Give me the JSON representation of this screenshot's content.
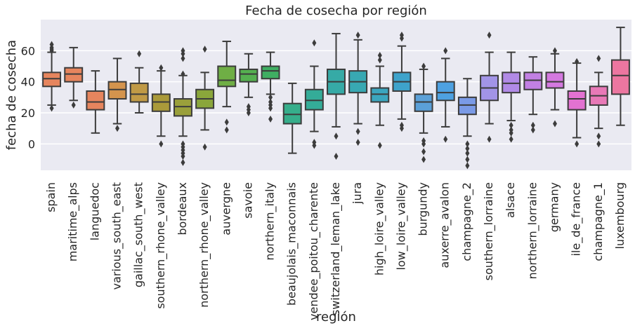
{
  "chart_data": {
    "type": "boxplot",
    "title": "Fecha de cosecha por región",
    "xlabel": "región",
    "ylabel": "fecha de cosecha",
    "ylim": [
      -17,
      80
    ],
    "yticks": [
      0,
      20,
      40,
      60
    ],
    "grid": true,
    "categories": [
      "spain",
      "maritime_alps",
      "languedoc",
      "various_south_east",
      "gaillac_south_west",
      "southern_rhone_valley",
      "bordeaux",
      "northern_rhone_valley",
      "auvergne",
      "savoie",
      "northern_italy",
      "beaujolais_maconnais",
      "vendee_poitou_charente",
      "switzerland_leman_lake",
      "jura",
      "high_loire_valley",
      "low_loire_valley",
      "burgundy",
      "auxerre_avalon",
      "champagne_2",
      "southern_lorraine",
      "alsace",
      "northern_lorraine",
      "germany",
      "ile_de_france",
      "champagne_1",
      "luxembourg"
    ],
    "colors": [
      "#e6855e",
      "#e6855e",
      "#e6855e",
      "#d4944d",
      "#c09a46",
      "#aa9a3a",
      "#9aa03b",
      "#8aa63b",
      "#6fae45",
      "#55b050",
      "#3fae62",
      "#36ae8b",
      "#34ac98",
      "#36aaa6",
      "#38a8b2",
      "#3ba6bf",
      "#3ea3cb",
      "#5ba0d8",
      "#4ea1e1",
      "#7a9ae6",
      "#a294e7",
      "#b18ae6",
      "#c280e4",
      "#d479e0",
      "#e272d1",
      "#e879b7",
      "#ec76a0"
    ],
    "series": [
      {
        "name": "spain",
        "min": 25,
        "q1": 37,
        "median": 42,
        "q3": 46,
        "max": 59,
        "outliers": [
          23,
          60,
          61,
          62,
          64
        ]
      },
      {
        "name": "maritime_alps",
        "min": 28,
        "q1": 40,
        "median": 45,
        "q3": 49,
        "max": 62,
        "outliers": [
          25
        ]
      },
      {
        "name": "languedoc",
        "min": 7,
        "q1": 22,
        "median": 27,
        "q3": 34,
        "max": 47,
        "outliers": []
      },
      {
        "name": "various_south_east",
        "min": 13,
        "q1": 29,
        "median": 35,
        "q3": 40,
        "max": 55,
        "outliers": [
          10
        ]
      },
      {
        "name": "gaillac_south_west",
        "min": 20,
        "q1": 27,
        "median": 32,
        "q3": 39,
        "max": 49,
        "outliers": [
          58
        ]
      },
      {
        "name": "southern_rhone_valley",
        "min": 5,
        "q1": 21,
        "median": 27,
        "q3": 32,
        "max": 47,
        "outliers": [
          0,
          49
        ]
      },
      {
        "name": "bordeaux",
        "min": 5,
        "q1": 18,
        "median": 24,
        "q3": 29,
        "max": 44,
        "outliers": [
          -12,
          -8,
          -6,
          -4,
          -2,
          0,
          45,
          55,
          58,
          60
        ]
      },
      {
        "name": "northern_rhone_valley",
        "min": 9,
        "q1": 23,
        "median": 29,
        "q3": 35,
        "max": 46,
        "outliers": [
          -2,
          61
        ]
      },
      {
        "name": "auvergne",
        "min": 24,
        "q1": 37,
        "median": 41,
        "q3": 50,
        "max": 66,
        "outliers": [
          9,
          14
        ]
      },
      {
        "name": "savoie",
        "min": 30,
        "q1": 40,
        "median": 45,
        "q3": 48,
        "max": 58,
        "outliers": [
          20,
          22,
          24
        ]
      },
      {
        "name": "northern_italy",
        "min": 32,
        "q1": 42,
        "median": 47,
        "q3": 50,
        "max": 59,
        "outliers": [
          16,
          23,
          25,
          27,
          30
        ]
      },
      {
        "name": "beaujolais_maconnais",
        "min": -6,
        "q1": 13,
        "median": 19,
        "q3": 26,
        "max": 39,
        "outliers": []
      },
      {
        "name": "vendee_poitou_charente",
        "min": 8,
        "q1": 22,
        "median": 28,
        "q3": 35,
        "max": 50,
        "outliers": [
          -1,
          1,
          65
        ]
      },
      {
        "name": "switzerland_leman_lake",
        "min": 11,
        "q1": 32,
        "median": 40,
        "q3": 48,
        "max": 71,
        "outliers": [
          -8,
          5
        ]
      },
      {
        "name": "jura",
        "min": 13,
        "q1": 33,
        "median": 40,
        "q3": 47,
        "max": 67,
        "outliers": [
          1,
          8,
          70
        ]
      },
      {
        "name": "high_loire_valley",
        "min": 12,
        "q1": 27,
        "median": 32,
        "q3": 36,
        "max": 50,
        "outliers": [
          -1,
          54,
          57
        ]
      },
      {
        "name": "low_loire_valley",
        "min": 16,
        "q1": 34,
        "median": 40,
        "q3": 46,
        "max": 63,
        "outliers": [
          10,
          12,
          68,
          70
        ]
      },
      {
        "name": "burgundy",
        "min": 7,
        "q1": 21,
        "median": 27,
        "q3": 32,
        "max": 48,
        "outliers": [
          -10,
          -5,
          0,
          2,
          50
        ]
      },
      {
        "name": "auxerre_avalon",
        "min": 11,
        "q1": 28,
        "median": 33,
        "q3": 40,
        "max": 55,
        "outliers": [
          3,
          60
        ]
      },
      {
        "name": "champagne_2",
        "min": 5,
        "q1": 19,
        "median": 25,
        "q3": 30,
        "max": 42,
        "outliers": [
          -14,
          -10,
          -6,
          -3,
          0
        ]
      },
      {
        "name": "southern_lorraine",
        "min": 13,
        "q1": 28,
        "median": 36,
        "q3": 44,
        "max": 59,
        "outliers": [
          3,
          70
        ]
      },
      {
        "name": "alsace",
        "min": 15,
        "q1": 33,
        "median": 39,
        "q3": 46,
        "max": 59,
        "outliers": [
          3,
          7,
          9,
          12
        ]
      },
      {
        "name": "northern_lorraine",
        "min": 19,
        "q1": 35,
        "median": 41,
        "q3": 46,
        "max": 56,
        "outliers": [
          9,
          12
        ]
      },
      {
        "name": "germany",
        "min": 22,
        "q1": 36,
        "median": 40,
        "q3": 46,
        "max": 58,
        "outliers": [
          13,
          60
        ]
      },
      {
        "name": "ile_de_france",
        "min": 4,
        "q1": 22,
        "median": 29,
        "q3": 34,
        "max": 52,
        "outliers": [
          0,
          53
        ]
      },
      {
        "name": "champagne_1",
        "min": 10,
        "q1": 25,
        "median": 31,
        "q3": 37,
        "max": 46,
        "outliers": [
          0,
          5,
          55
        ]
      },
      {
        "name": "luxembourg",
        "min": 12,
        "q1": 32,
        "median": 44,
        "q3": 54,
        "max": 75,
        "outliers": []
      }
    ]
  }
}
